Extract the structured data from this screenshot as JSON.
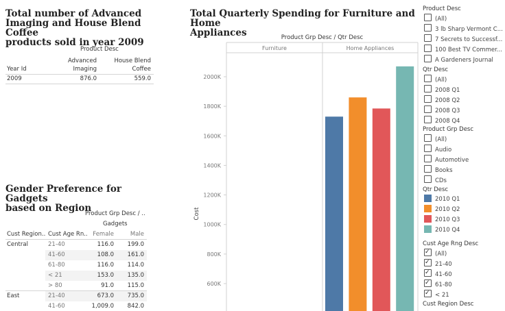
{
  "sheet1": {
    "title": "Total number of  Advanced Imaging and House Blend Coffee products sold in year 2009",
    "title_lines": [
      "Total number of  Advanced",
      "Imaging and House Blend Coffee",
      "products sold in year 2009"
    ],
    "col_group": "Product Desc",
    "col1_line1": "Advanced",
    "col1_line2": "Imaging",
    "col2_line1": "House Blend",
    "col2_line2": "Coffee",
    "row_header": "Year Id",
    "row": {
      "year": "2009",
      "v1": "876.0",
      "v2": "559.0"
    }
  },
  "sheet2": {
    "title": "Gender Preference for Gadgets based on Region",
    "title_lines": [
      "Gender Preference for Gadgets",
      "based on Region"
    ],
    "col_group": "Product Grp Desc / ..",
    "col_sub": "Gadgets",
    "row_header_1": "Cust Region..",
    "row_header_2": "Cust Age Rn..",
    "col_female": "Female",
    "col_male": "Male",
    "rows": [
      {
        "region": "Central",
        "age": "21-40",
        "female": "116.0",
        "male": "199.0"
      },
      {
        "region": "",
        "age": "41-60",
        "female": "108.0",
        "male": "161.0"
      },
      {
        "region": "",
        "age": "61-80",
        "female": "116.0",
        "male": "114.0"
      },
      {
        "region": "",
        "age": "< 21",
        "female": "153.0",
        "male": "135.0"
      },
      {
        "region": "",
        "age": "> 80",
        "female": "91.0",
        "male": "115.0"
      },
      {
        "region": "East",
        "age": "21-40",
        "female": "673.0",
        "male": "735.0"
      },
      {
        "region": "",
        "age": "41-60",
        "female": "1,009.0",
        "male": "842.0"
      }
    ]
  },
  "chart_data": {
    "type": "bar",
    "title": "Total Quarterly Spending for Furniture and Home Appliances",
    "title_lines": [
      "Total Quarterly Spending for Furniture and Home",
      "Appliances"
    ],
    "header": "Product Grp Desc / Qtr Desc",
    "panels": [
      "Furniture",
      "Home Appliances"
    ],
    "ylabel": "Cost",
    "yticks": [
      "600K",
      "800K",
      "1000K",
      "1200K",
      "1400K",
      "1600K",
      "1800K",
      "2000K"
    ],
    "ytick_values": [
      600000,
      800000,
      1000000,
      1200000,
      1400000,
      1600000,
      1800000,
      2000000
    ],
    "ylim": [
      460000,
      2200000
    ],
    "series": [
      {
        "name": "2010 Q1",
        "color": "#4e79a7",
        "panel": "Home Appliances",
        "value": 1730000
      },
      {
        "name": "2010 Q2",
        "color": "#f28e2b",
        "panel": "Home Appliances",
        "value": 1860000
      },
      {
        "name": "2010 Q3",
        "color": "#e15759",
        "panel": "Home Appliances",
        "value": 1785000
      },
      {
        "name": "2010 Q4",
        "color": "#76b7b2",
        "panel": "Home Appliances",
        "value": 2070000
      }
    ]
  },
  "filters": {
    "product_desc": {
      "title": "Product Desc",
      "items": [
        {
          "label": "(All)",
          "checked": false
        },
        {
          "label": "3 lb Sharp Vermont C...",
          "checked": false
        },
        {
          "label": "7 Secrets to Successf...",
          "checked": false
        },
        {
          "label": "100 Best TV Commer...",
          "checked": false
        },
        {
          "label": "A Gardeners Journal",
          "checked": false
        }
      ]
    },
    "qtr_desc": {
      "title": "Qtr Desc",
      "items": [
        {
          "label": "(All)",
          "checked": false
        },
        {
          "label": "2008 Q1",
          "checked": false
        },
        {
          "label": "2008 Q2",
          "checked": false
        },
        {
          "label": "2008 Q3",
          "checked": false
        },
        {
          "label": "2008 Q4",
          "checked": false
        }
      ]
    },
    "product_grp_desc": {
      "title": "Product Grp Desc",
      "items": [
        {
          "label": "(All)",
          "checked": false
        },
        {
          "label": "Audio",
          "checked": false
        },
        {
          "label": "Automotive",
          "checked": false
        },
        {
          "label": "Books",
          "checked": false
        },
        {
          "label": "CDs",
          "checked": false
        }
      ]
    },
    "legend": {
      "title": "Qtr Desc",
      "items": [
        {
          "label": "2010 Q1",
          "color": "#4e79a7"
        },
        {
          "label": "2010 Q2",
          "color": "#f28e2b"
        },
        {
          "label": "2010 Q3",
          "color": "#e15759"
        },
        {
          "label": "2010 Q4",
          "color": "#76b7b2"
        }
      ]
    },
    "cust_age_rng_desc": {
      "title": "Cust Age Rng Desc",
      "items": [
        {
          "label": "(All)",
          "checked": true
        },
        {
          "label": "21-40",
          "checked": true
        },
        {
          "label": "41-60",
          "checked": true
        },
        {
          "label": "61-80",
          "checked": true
        },
        {
          "label": "< 21",
          "checked": true
        }
      ]
    },
    "cust_region_desc": {
      "title": "Cust Region Desc"
    }
  }
}
